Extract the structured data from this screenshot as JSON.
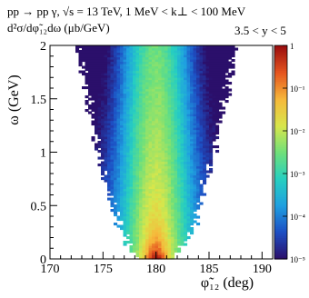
{
  "header": {
    "line1": "pp → pp γ,  √s = 13 TeV,  1 MeV < k⊥ < 100 MeV",
    "zlabel": "d²σ/dφ̃₁₂dω (μb/GeV)",
    "ycut": "3.5 < y < 5"
  },
  "chart_data": {
    "type": "heatmap",
    "xlabel": "φ̃₁₂ (deg)",
    "ylabel": "ω (GeV)",
    "xlim": [
      170,
      191
    ],
    "ylim": [
      0,
      2
    ],
    "x_ticks": [
      170,
      175,
      180,
      185,
      190
    ],
    "y_ticks": [
      0,
      0.5,
      1,
      1.5,
      2
    ],
    "z_scale": "log",
    "z_range": [
      1e-05,
      1
    ],
    "z_ticks": [
      "1",
      "10⁻¹",
      "10⁻²",
      "10⁻³",
      "10⁻⁴",
      "10⁻⁵"
    ],
    "peak": {
      "x": 180,
      "y": 0.1
    },
    "grid": false,
    "colormap": [
      "#2b0f6b",
      "#1d4fc4",
      "#1fa0e0",
      "#27cfc0",
      "#6fe07a",
      "#d8e64b",
      "#f6b93b",
      "#e6561f",
      "#9c0f0f"
    ]
  }
}
